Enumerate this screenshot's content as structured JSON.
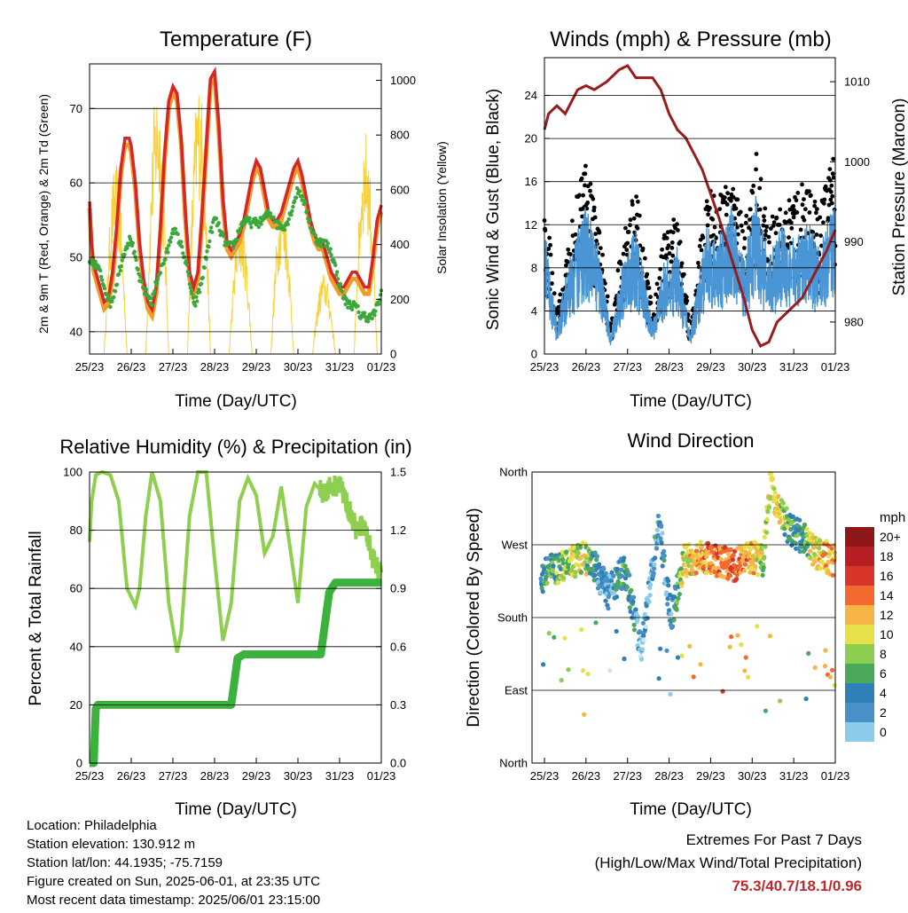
{
  "colors": {
    "temp2m": "#d62728",
    "temp9m": "#f39a2c",
    "dewpoint": "#3aa83a",
    "solar": "#f7d23e",
    "wind": "#4a95d3",
    "gust": "#000000",
    "pressure": "#9a1b1e",
    "rh": "#8fcf4f",
    "rain": "#3bb23b",
    "grid": "#000000",
    "extremes": "#c1272d"
  },
  "time_ticks": [
    "25/23",
    "26/23",
    "27/23",
    "28/23",
    "29/23",
    "30/23",
    "31/23",
    "01/23"
  ],
  "charts": {
    "temperature": {
      "title": "Temperature (F)",
      "xlabel": "Time (Day/UTC)",
      "ylabel_left": "2m & 9m T (Red, Orange) & 2m Td (Green)",
      "ylabel_right": "Solar Insolation (Yellow)",
      "yticks_left": [
        "40",
        "50",
        "60",
        "70"
      ],
      "yticks_right": [
        "0",
        "200",
        "400",
        "600",
        "800",
        "1000"
      ]
    },
    "winds": {
      "title": "Winds (mph) & Pressure (mb)",
      "xlabel": "Time (Day/UTC)",
      "ylabel_left": "Sonic Wind & Gust (Blue, Black)",
      "ylabel_right": "Station Pressure (Maroon)",
      "yticks_left": [
        "0",
        "4",
        "8",
        "12",
        "16",
        "20",
        "24"
      ],
      "yticks_right": [
        "980",
        "990",
        "1000",
        "1010"
      ]
    },
    "humidity": {
      "title": "Relative Humidity (%) & Precipitation (in)",
      "xlabel": "Time (Day/UTC)",
      "ylabel_left": "Percent & Total Rainfall",
      "yticks_left": [
        "0",
        "20",
        "40",
        "60",
        "80",
        "100"
      ],
      "yticks_right": [
        "0.0",
        "0.3",
        "0.6",
        "0.9",
        "1.2",
        "1.5"
      ]
    },
    "direction": {
      "title": "Wind Direction",
      "xlabel": "Time (Day/UTC)",
      "ylabel_left": "Direction (Colored By Speed)",
      "yticks_left": [
        "North",
        "East",
        "South",
        "West",
        "North"
      ],
      "legend_title": "mph",
      "legend_labels": [
        "0",
        "2",
        "4",
        "6",
        "8",
        "10",
        "12",
        "14",
        "16",
        "18",
        "20+"
      ],
      "legend_colors": [
        "#c6e9f7",
        "#8ccbea",
        "#4a90c8",
        "#2f7fb8",
        "#4aa85a",
        "#8ccc4f",
        "#e6e04a",
        "#f7b548",
        "#f26a30",
        "#d8362a",
        "#b81f25",
        "#8e1718"
      ]
    }
  },
  "chart_data": [
    {
      "type": "line",
      "title": "Temperature (F)",
      "x_range": [
        "25/23",
        "01/23"
      ],
      "ylim": [
        37,
        76
      ],
      "ylim_right": [
        0,
        1060
      ],
      "series": [
        {
          "x": [
            0,
            0.05,
            0.1,
            0.2,
            0.3,
            0.35,
            0.45,
            0.55,
            0.65,
            0.75,
            0.85,
            0.95,
            1.0,
            1.1,
            1.2,
            1.3,
            1.4,
            1.5,
            1.6,
            1.7,
            1.8,
            1.9,
            2.0,
            2.1,
            2.2,
            2.3,
            2.4,
            2.5,
            2.6,
            2.7,
            2.8,
            2.9,
            3.0,
            3.1,
            3.2,
            3.3,
            3.4,
            3.5,
            3.6,
            3.7,
            3.8,
            3.9,
            4.0,
            4.1,
            4.2,
            4.3,
            4.4,
            4.5,
            4.6,
            4.7,
            4.8,
            4.9,
            5.0,
            5.1,
            5.2,
            5.3,
            5.4,
            5.5,
            5.6,
            5.7,
            5.8,
            5.9,
            6.0,
            6.1,
            6.2,
            6.3,
            6.4,
            6.5,
            6.6,
            6.7,
            6.8,
            6.9,
            7.0
          ],
          "y": [
            57.5,
            52,
            49,
            47,
            45,
            44,
            44.5,
            48,
            54,
            62,
            66,
            66,
            65,
            60,
            52,
            47,
            44,
            43,
            46,
            54,
            64,
            71,
            73,
            72,
            66,
            56,
            48,
            46,
            48,
            56,
            65,
            74,
            75,
            68,
            58,
            52,
            51,
            52,
            53,
            55,
            58,
            61,
            63,
            62,
            59,
            56,
            55,
            55,
            56,
            58,
            60,
            62,
            63,
            61,
            58,
            55,
            53,
            52,
            52,
            50,
            48,
            47,
            46,
            46,
            47,
            48,
            48,
            47,
            46,
            46,
            50,
            55,
            57
          ]
        },
        {
          "x": [
            0,
            0.5,
            1.0,
            1.5,
            2.0,
            2.5,
            3.0,
            3.5,
            4.0,
            4.5,
            5.0,
            5.5,
            6.0,
            6.5,
            7.0
          ],
          "y": [
            49,
            45,
            52,
            43,
            55,
            44,
            54,
            52,
            56,
            54,
            58,
            53,
            47,
            41,
            45
          ]
        }
      ]
    },
    {
      "type": "line",
      "title": "Winds (mph) & Pressure (mb)",
      "x_range": [
        "25/23",
        "01/23"
      ],
      "ylim": [
        0,
        27.5
      ],
      "ylim_right": [
        976,
        1013
      ],
      "series": [
        {
          "x": [
            0,
            0.1,
            0.3,
            0.5,
            0.8,
            1.0,
            1.2,
            1.5,
            1.8,
            2.0,
            2.2,
            2.4,
            2.6,
            2.8,
            3.0,
            3.2,
            3.4,
            3.6,
            3.8,
            4.0,
            4.2,
            4.5,
            4.8,
            5.0,
            5.2,
            5.4,
            5.6,
            5.8,
            6.0,
            6.2,
            6.4,
            6.6,
            6.8,
            7.0
          ],
          "y": [
            1004,
            1006,
            1007,
            1006,
            1009,
            1009.5,
            1009,
            1010,
            1011.5,
            1012,
            1010.5,
            1010.5,
            1010.5,
            1009,
            1006,
            1004,
            1003,
            1001,
            999,
            996,
            993,
            988,
            983,
            979,
            977,
            977.5,
            980,
            981,
            982,
            983,
            985,
            987,
            989,
            991.5
          ]
        }
      ]
    },
    {
      "type": "line",
      "title": "Relative Humidity (%) & Precipitation (in)",
      "x_range": [
        "25/23",
        "01/23"
      ],
      "ylim": [
        0,
        100
      ],
      "ylim_right": [
        0,
        1.5
      ],
      "series": [
        {
          "x": [
            0,
            0.05,
            0.15,
            0.3,
            0.5,
            0.7,
            0.9,
            1.1,
            1.2,
            1.35,
            1.5,
            1.7,
            1.9,
            2.1,
            2.2,
            2.4,
            2.6,
            2.8,
            3.0,
            3.2,
            3.4,
            3.6,
            3.8,
            4.0,
            4.2,
            4.4,
            4.6,
            4.8,
            5.0,
            5.2,
            5.4,
            5.6,
            5.8,
            6.0,
            6.2,
            6.4,
            6.6,
            6.8,
            7.0
          ],
          "y": [
            76,
            90,
            99,
            100,
            99,
            90,
            60,
            54,
            60,
            85,
            100,
            90,
            55,
            38,
            45,
            85,
            100,
            100,
            70,
            42,
            55,
            90,
            98,
            92,
            72,
            78,
            95,
            75,
            55,
            88,
            96,
            93,
            95,
            96,
            88,
            80,
            82,
            70,
            64
          ]
        },
        {
          "x": [
            0,
            0.1,
            0.15,
            0.2,
            1.0,
            2.0,
            3.0,
            3.4,
            3.55,
            3.7,
            4.0,
            5.0,
            5.55,
            5.75,
            5.9,
            6.0,
            7.0
          ],
          "y": [
            0,
            0,
            0.28,
            0.3,
            0.3,
            0.3,
            0.3,
            0.3,
            0.54,
            0.56,
            0.56,
            0.56,
            0.56,
            0.88,
            0.93,
            0.93,
            0.93
          ]
        }
      ]
    },
    {
      "type": "scatter",
      "title": "Wind Direction",
      "x_range": [
        "25/23",
        "01/23"
      ],
      "ylim": [
        0,
        360
      ]
    }
  ],
  "info": {
    "location": "Location: Philadelphia",
    "elevation": "Station elevation: 130.912 m",
    "latlon": "Station lat/lon: 44.1935; -75.7159",
    "created": "Figure created on Sun, 2025-06-01, at 23:35 UTC",
    "recent": "Most recent data timestamp: 2025/06/01 23:15:00"
  },
  "extremes": {
    "line1": "Extremes For Past 7 Days",
    "line2": "(High/Low/Max Wind/Total Precipitation)",
    "values": "75.3/40.7/18.1/0.96"
  }
}
